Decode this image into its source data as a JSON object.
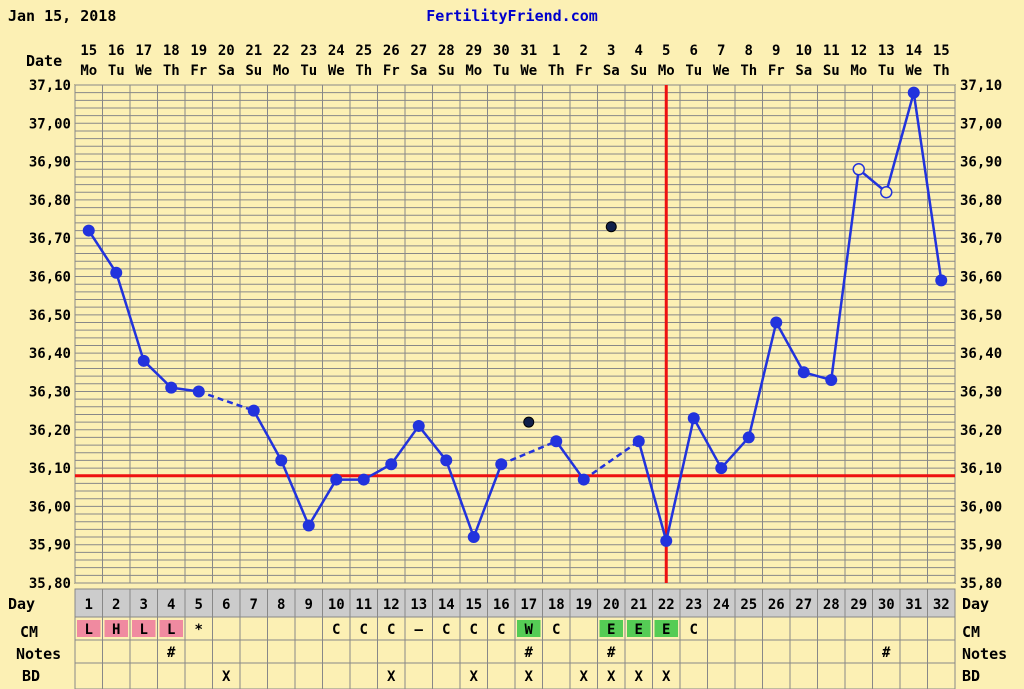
{
  "header": {
    "date": "Jan 15, 2018",
    "site": "FertilityFriend.com"
  },
  "labels": {
    "date_row": "Date",
    "day_row": "Day",
    "cm_row": "CM",
    "notes_row": "Notes",
    "bd_row": "BD"
  },
  "chart_data": {
    "type": "line",
    "title": "",
    "xlabel": "Day",
    "ylabel": "",
    "ylim": [
      35.8,
      37.1
    ],
    "y_ticks": [
      "35,80",
      "35,90",
      "36,00",
      "36,10",
      "36,20",
      "36,30",
      "36,40",
      "36,50",
      "36,60",
      "36,70",
      "36,80",
      "36,90",
      "37,00",
      "37,10"
    ],
    "dates": [
      "15",
      "16",
      "17",
      "18",
      "19",
      "20",
      "21",
      "22",
      "23",
      "24",
      "25",
      "26",
      "27",
      "28",
      "29",
      "30",
      "31",
      "1",
      "2",
      "3",
      "4",
      "5",
      "6",
      "7",
      "8",
      "9",
      "10",
      "11",
      "12",
      "13",
      "14",
      "15"
    ],
    "weekdays": [
      "Mo",
      "Tu",
      "We",
      "Th",
      "Fr",
      "Sa",
      "Su",
      "Mo",
      "Tu",
      "We",
      "Th",
      "Fr",
      "Sa",
      "Su",
      "Mo",
      "Tu",
      "We",
      "Th",
      "Fr",
      "Sa",
      "Su",
      "Mo",
      "Tu",
      "We",
      "Th",
      "Fr",
      "Sa",
      "Su",
      "Mo",
      "Tu",
      "We",
      "Th"
    ],
    "cycle_days": [
      "1",
      "2",
      "3",
      "4",
      "5",
      "6",
      "7",
      "8",
      "9",
      "10",
      "11",
      "12",
      "13",
      "14",
      "15",
      "16",
      "17",
      "18",
      "19",
      "20",
      "21",
      "22",
      "23",
      "24",
      "25",
      "26",
      "27",
      "28",
      "29",
      "30",
      "31",
      "32"
    ],
    "series": [
      {
        "temps": [
          36.72,
          36.61,
          36.38,
          36.31,
          36.3,
          null,
          36.25,
          36.12,
          35.95,
          36.07,
          36.07,
          36.11,
          36.21,
          36.12,
          35.92,
          36.11,
          null,
          36.17,
          36.07,
          null,
          36.17,
          35.91,
          36.23,
          36.1,
          36.18,
          36.48,
          36.35,
          36.33,
          36.88,
          36.82,
          37.08,
          36.59
        ],
        "open_points": [
          29,
          30
        ]
      }
    ],
    "discarded": [
      {
        "day": 17,
        "value": 36.22
      },
      {
        "day": 20,
        "value": 36.73
      }
    ],
    "coverline": 36.08,
    "ovulation_day": 22,
    "cm": [
      "L",
      "H",
      "L",
      "L",
      "*",
      "",
      "",
      "",
      "",
      "C",
      "C",
      "C",
      "–",
      "C",
      "C",
      "C",
      "W",
      "C",
      "",
      "E",
      "E",
      "E",
      "C",
      "",
      "",
      "",
      "",
      "",
      "",
      "",
      "",
      ""
    ],
    "notes": [
      "",
      "",
      "",
      "#",
      "",
      "",
      "",
      "",
      "",
      "",
      "",
      "",
      "",
      "",
      "",
      "",
      "#",
      "",
      "",
      "#",
      "",
      "",
      "",
      "",
      "",
      "",
      "",
      "",
      "",
      "#",
      "",
      ""
    ],
    "bd": [
      "",
      "",
      "",
      "",
      "",
      "X",
      "",
      "",
      "",
      "",
      "",
      "X",
      "",
      "",
      "X",
      "",
      "X",
      "",
      "X",
      "X",
      "X",
      "X",
      "",
      "",
      "",
      "",
      "",
      "",
      "",
      "",
      "",
      ""
    ]
  },
  "colors": {
    "background": "#fcf0b4",
    "grid": "#888888",
    "line": "#2233dd",
    "coverline": "#ee1111",
    "label_bg": "#cccccc",
    "cm_red": "#f08aa0",
    "cm_green": "#55cc55",
    "text_blue": "#0000cc"
  }
}
